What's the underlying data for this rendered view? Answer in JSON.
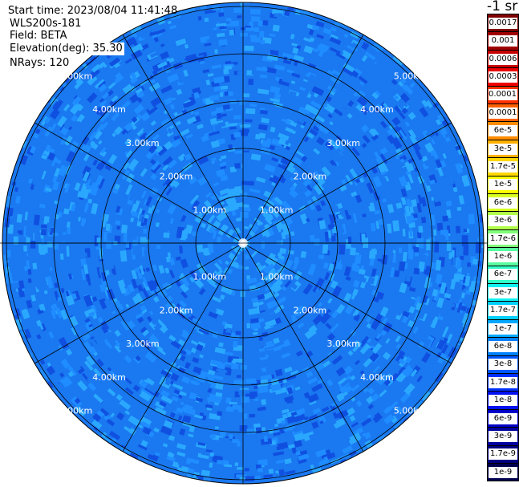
{
  "info": {
    "start_time": "Start time: 2023/08/04 11:41:48",
    "instrument": "WLS200s-181",
    "field": "Field: BETA",
    "elevation": "Elevation(deg): 35.30",
    "nrays": "NRays: 120"
  },
  "unit_title": "-1 sr",
  "range_ring_labels": [
    "1.00km",
    "2.00km",
    "3.00km",
    "4.00km",
    "5.00km"
  ],
  "colorbar": [
    {
      "label": "0.0017",
      "color": "#7f0000"
    },
    {
      "label": "0.001",
      "color": "#a00000"
    },
    {
      "label": "0.0006",
      "color": "#c80000"
    },
    {
      "label": "0.0003",
      "color": "#ee0000"
    },
    {
      "label": "0.00017",
      "color": "#ff3000"
    },
    {
      "label": "0.0001",
      "color": "#ff6000"
    },
    {
      "label": "6e-5",
      "color": "#ff8c00"
    },
    {
      "label": "3e-5",
      "color": "#ffb000"
    },
    {
      "label": "1.7e-5",
      "color": "#ffd800"
    },
    {
      "label": "1e-5",
      "color": "#ffff00"
    },
    {
      "label": "6e-6",
      "color": "#d8ff20"
    },
    {
      "label": "3e-6",
      "color": "#b0ff48"
    },
    {
      "label": "1.7e-6",
      "color": "#80ff78"
    },
    {
      "label": "1e-6",
      "color": "#58ffa0"
    },
    {
      "label": "6e-7",
      "color": "#30ffc8"
    },
    {
      "label": "3e-7",
      "color": "#10f0f0"
    },
    {
      "label": "1.7e-7",
      "color": "#00d0ff"
    },
    {
      "label": "1e-7",
      "color": "#00a8ff"
    },
    {
      "label": "6e-8",
      "color": "#0080ff"
    },
    {
      "label": "3e-8",
      "color": "#0058ff"
    },
    {
      "label": "1.7e-8",
      "color": "#0030ff"
    },
    {
      "label": "1e-8",
      "color": "#0010f0"
    },
    {
      "label": "6e-9",
      "color": "#0000c8"
    },
    {
      "label": "3e-9",
      "color": "#0000a0"
    },
    {
      "label": "1.7e-9",
      "color": "#000080"
    },
    {
      "label": "1e-9",
      "color": "#000050"
    }
  ],
  "colors": {
    "field_base": "#1a78f0",
    "field_light": "#2aa8ff",
    "field_mid": "#1f8cff",
    "field_dark": "#1050e0",
    "grid": "#000000",
    "ring_label": "#ffffff"
  }
}
